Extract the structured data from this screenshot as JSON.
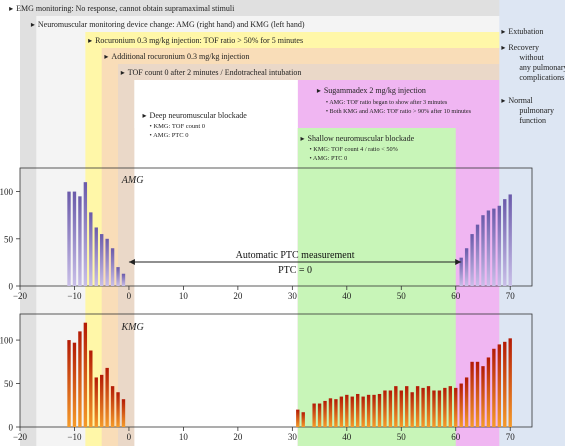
{
  "chart_data": [
    {
      "type": "bar",
      "panel_label": "AMG",
      "x": [
        -11,
        -10,
        -9,
        -8,
        -7,
        -6,
        -5,
        -4,
        -3,
        -2,
        -1,
        61,
        62,
        63,
        64,
        65,
        66,
        67,
        68,
        69,
        70
      ],
      "values": [
        100,
        100,
        95,
        110,
        78,
        62,
        55,
        50,
        40,
        20,
        13,
        30,
        40,
        55,
        65,
        75,
        80,
        82,
        85,
        92,
        97
      ],
      "xlim": [
        -20,
        74
      ],
      "ylim": [
        0,
        125
      ],
      "xticks": [
        -20,
        -10,
        0,
        10,
        20,
        30,
        40,
        50,
        60,
        70
      ],
      "yticks": [
        0,
        50,
        100
      ],
      "color_top": "#6a5aaa",
      "color_bottom": "#c9bfe8",
      "annotation": {
        "title": "Automatic PTC measurement",
        "subtitle": "PTC = 0",
        "from_x": 0,
        "to_x": 61
      }
    },
    {
      "type": "bar",
      "panel_label": "KMG",
      "x": [
        -11,
        -10,
        -9,
        -8,
        -7,
        -6,
        -5,
        -4,
        -3,
        -2,
        -1,
        31,
        32,
        34,
        35,
        36,
        37,
        38,
        39,
        40,
        41,
        42,
        43,
        44,
        45,
        46,
        47,
        48,
        49,
        50,
        51,
        52,
        53,
        54,
        55,
        56,
        57,
        58,
        59,
        60,
        61,
        62,
        63,
        64,
        65,
        66,
        67,
        68,
        69,
        70
      ],
      "values": [
        100,
        97,
        110,
        120,
        88,
        57,
        60,
        68,
        47,
        40,
        32,
        20,
        17,
        27,
        27,
        30,
        33,
        32,
        35,
        37,
        35,
        38,
        35,
        37,
        37,
        38,
        42,
        42,
        47,
        42,
        47,
        40,
        47,
        45,
        47,
        42,
        42,
        45,
        47,
        45,
        50,
        57,
        75,
        75,
        70,
        80,
        90,
        95,
        98,
        102
      ],
      "xlim": [
        -20,
        74
      ],
      "ylim": [
        0,
        130
      ],
      "xticks": [
        -20,
        -10,
        0,
        10,
        20,
        30,
        40,
        50,
        60,
        70
      ],
      "yticks": [
        0,
        50,
        100
      ],
      "color_top": "#b31a05",
      "color_bottom": "#f59b2a"
    }
  ],
  "phases": [
    {
      "from": -20,
      "to": 74,
      "y0": 0,
      "color": "#e0e0e0",
      "label": "EMG monitoring: No response, cannot obtain supramaximal stimuli",
      "label_x": -22
    },
    {
      "from": -17,
      "to": 74,
      "y0": 1,
      "color": "#f4f4f4",
      "label": "Neuromuscular monitoring device change: AMG (right hand) and KMG (left hand)",
      "label_x": -18
    },
    {
      "from": -8,
      "to": 74,
      "y0": 2,
      "color": "#fff7a8",
      "label": "Rocuronium 0.3 mg/kg injection: TOF ratio > 50% for 5 minutes",
      "label_x": -7.5
    },
    {
      "from": -5,
      "to": 74,
      "y0": 3,
      "color": "#f9ddb8",
      "label": "Additional rocuronium 0.3 mg/kg injection",
      "label_x": -4.5
    },
    {
      "from": -2,
      "to": 74,
      "y0": 4,
      "color": "#ead8c8",
      "label": "TOF count 0 after 2 minutes / Endotracheal intubation",
      "label_x": -1.5
    }
  ],
  "regions": {
    "deep": {
      "title": "Deep neuromuscular blockade",
      "items": [
        "KMG: TOF count 0",
        "AMG: PTC 0"
      ]
    },
    "sugammadex": {
      "title": "Sugammadex 2 mg/kg injection",
      "items": [
        "AMG: TOF ratio began to show after 3 minutes",
        "Both KMG and AMG: TOF ratio > 90% after 10 minutes"
      ],
      "color": "#f0b6f2"
    },
    "shallow": {
      "title": "Shallow neuromuscular blockade",
      "items": [
        "KMG: TOF count 4 / ratio < 50%",
        "AMG: PTC 0"
      ],
      "color": "#c8f5b8"
    },
    "right_column": {
      "color": "#dde6f3",
      "items": [
        {
          "lines": [
            "Extubation"
          ]
        },
        {
          "lines": [
            "Recovery",
            "without",
            "any pulmonary",
            "complications"
          ]
        },
        {
          "lines": [
            "Normal",
            "pulmonary",
            "function"
          ]
        }
      ]
    }
  }
}
